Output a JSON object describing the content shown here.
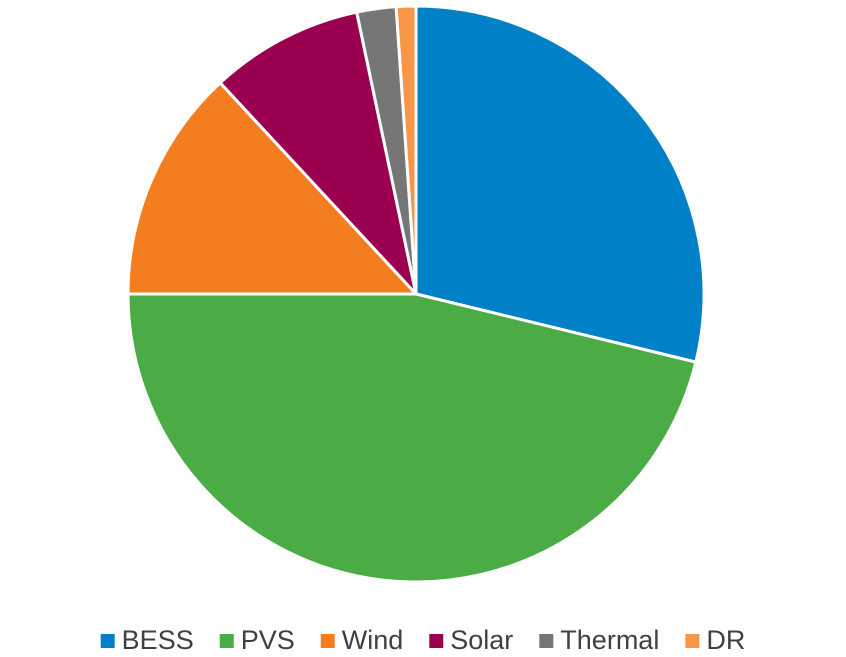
{
  "chart_data": {
    "type": "pie",
    "categories": [
      "BESS",
      "PVS",
      "Wind",
      "Solar",
      "Thermal",
      "DR"
    ],
    "values": [
      28.8,
      46.2,
      13.1,
      8.6,
      2.2,
      1.1
    ],
    "colors": [
      "#0080c6",
      "#4bab45",
      "#f47d20",
      "#9b0050",
      "#767676",
      "#f79646"
    ],
    "legend": "bottom"
  }
}
